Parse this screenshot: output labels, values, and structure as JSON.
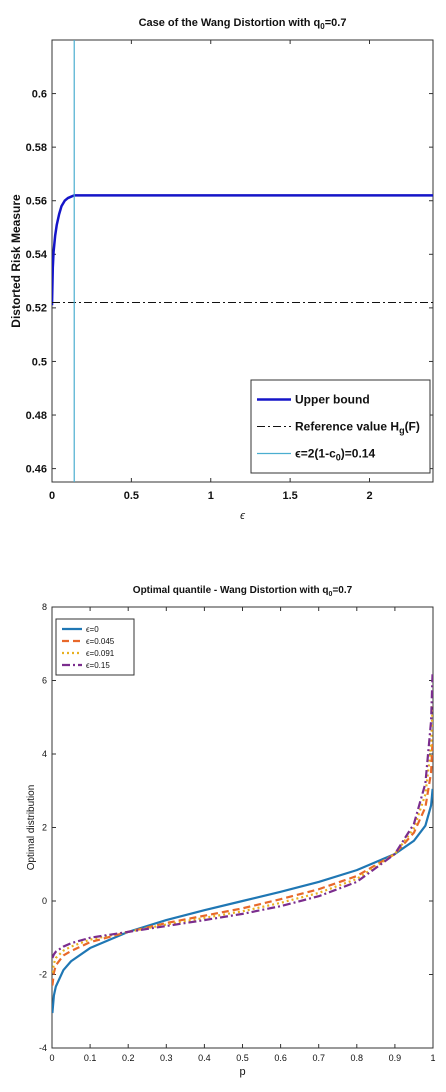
{
  "chart_data": [
    {
      "type": "line",
      "title": "Case of the Wang Distortion with q",
      "title_sub": "0",
      "title_tail": "=0.7",
      "xlabel": "ϵ",
      "ylabel": "Distorted Risk Measure",
      "xlim": [
        0,
        2.4
      ],
      "ylim": [
        0.455,
        0.62
      ],
      "xticks": [
        0,
        0.5,
        1,
        1.5,
        2
      ],
      "xtick_labels": [
        "0",
        "0.5",
        "1",
        "1.5",
        "2"
      ],
      "yticks": [
        0.46,
        0.48,
        0.5,
        0.52,
        0.54,
        0.56,
        0.58,
        0.6
      ],
      "ytick_labels": [
        "0.46",
        "0.48",
        "0.5",
        "0.52",
        "0.54",
        "0.56",
        "0.58",
        "0.6"
      ],
      "grid": false,
      "legend_position": "bottom-right",
      "series": [
        {
          "name": "Upper bound",
          "color": "#1515c8",
          "style": "solid",
          "x": [
            0,
            0.005,
            0.01,
            0.02,
            0.03,
            0.045,
            0.06,
            0.08,
            0.1,
            0.12,
            0.14,
            0.5,
            1,
            1.5,
            2,
            2.4
          ],
          "y": [
            0.521,
            0.535,
            0.541,
            0.547,
            0.551,
            0.555,
            0.558,
            0.56,
            0.561,
            0.5615,
            0.562,
            0.562,
            0.562,
            0.562,
            0.562,
            0.562
          ]
        },
        {
          "name": "Reference value H",
          "name_sub": "g",
          "name_tail": "(F)",
          "color": "#111111",
          "style": "dashdot",
          "x": [
            0,
            2.4
          ],
          "y": [
            0.522,
            0.522
          ]
        },
        {
          "name": "ϵ=2(1-c",
          "name_sub": "0",
          "name_tail": ")=0.14",
          "color": "#4aaed0",
          "style": "vertical",
          "x": [
            0.14,
            0.14
          ],
          "y": [
            0.455,
            0.62
          ]
        }
      ]
    },
    {
      "type": "line",
      "title": "Optimal quantile - Wang Distortion with q",
      "title_sub": "0",
      "title_tail": "=0.7",
      "xlabel": "p",
      "ylabel": "Optimal distribution",
      "xlim": [
        0,
        1
      ],
      "ylim": [
        -4,
        8
      ],
      "xticks": [
        0,
        0.1,
        0.2,
        0.3,
        0.4,
        0.5,
        0.6,
        0.7,
        0.8,
        0.9,
        1
      ],
      "xtick_labels": [
        "0",
        "0.1",
        "0.2",
        "0.3",
        "0.4",
        "0.5",
        "0.6",
        "0.7",
        "0.8",
        "0.9",
        "1"
      ],
      "yticks": [
        -4,
        -2,
        0,
        2,
        4,
        6,
        8
      ],
      "ytick_labels": [
        "-4",
        "-2",
        "0",
        "2",
        "4",
        "6",
        "8"
      ],
      "grid": false,
      "legend_position": "top-left",
      "series": [
        {
          "name": "ϵ=0",
          "color": "#1f77b4",
          "style": "solid",
          "x": [
            0.001,
            0.005,
            0.01,
            0.03,
            0.05,
            0.1,
            0.2,
            0.3,
            0.4,
            0.5,
            0.6,
            0.7,
            0.8,
            0.9,
            0.95,
            0.98,
            0.995,
            0.999
          ],
          "y": [
            -3.05,
            -2.57,
            -2.33,
            -1.88,
            -1.64,
            -1.28,
            -0.84,
            -0.52,
            -0.25,
            0,
            0.25,
            0.52,
            0.84,
            1.28,
            1.64,
            2.05,
            2.6,
            3.05
          ]
        },
        {
          "name": "ϵ=0.045",
          "color": "#e8682a",
          "style": "dashed",
          "x": [
            0.001,
            0.005,
            0.01,
            0.03,
            0.05,
            0.1,
            0.2,
            0.3,
            0.4,
            0.5,
            0.6,
            0.7,
            0.8,
            0.9,
            0.95,
            0.98,
            0.995,
            0.999
          ],
          "y": [
            -2.3,
            -1.95,
            -1.75,
            -1.48,
            -1.36,
            -1.12,
            -0.84,
            -0.6,
            -0.4,
            -0.2,
            0.05,
            0.32,
            0.68,
            1.28,
            1.86,
            2.55,
            3.5,
            4.4
          ]
        },
        {
          "name": "ϵ=0.091",
          "color": "#e8b020",
          "style": "dotted",
          "x": [
            0.001,
            0.005,
            0.01,
            0.03,
            0.05,
            0.1,
            0.2,
            0.3,
            0.4,
            0.5,
            0.6,
            0.7,
            0.8,
            0.9,
            0.95,
            0.98,
            0.995,
            0.999
          ],
          "y": [
            -1.95,
            -1.7,
            -1.55,
            -1.35,
            -1.24,
            -1.05,
            -0.84,
            -0.64,
            -0.46,
            -0.28,
            -0.05,
            0.22,
            0.6,
            1.28,
            1.98,
            2.9,
            4.2,
            5.3
          ]
        },
        {
          "name": "ϵ=0.15",
          "color": "#7b2d8e",
          "style": "dashdot",
          "x": [
            0.001,
            0.005,
            0.01,
            0.03,
            0.05,
            0.1,
            0.2,
            0.3,
            0.4,
            0.5,
            0.6,
            0.7,
            0.8,
            0.9,
            0.95,
            0.98,
            0.995,
            0.999
          ],
          "y": [
            -1.55,
            -1.45,
            -1.38,
            -1.24,
            -1.15,
            -1.0,
            -0.84,
            -0.68,
            -0.52,
            -0.35,
            -0.14,
            0.13,
            0.52,
            1.28,
            2.1,
            3.2,
            4.9,
            6.25
          ]
        }
      ]
    }
  ]
}
